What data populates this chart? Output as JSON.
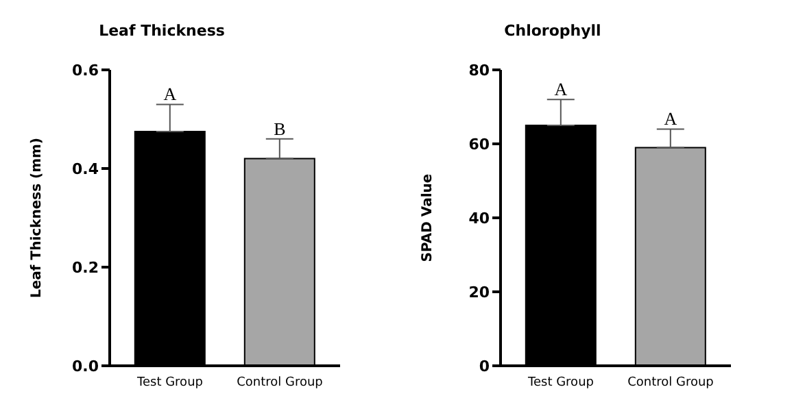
{
  "chart_data": [
    {
      "type": "bar",
      "title": "Leaf Thickness",
      "ylabel": "Leaf Thickness (mm)",
      "categories": [
        "Test Group",
        "Control Group"
      ],
      "values": [
        0.475,
        0.42
      ],
      "errors": [
        0.055,
        0.04
      ],
      "colors": [
        "#000000",
        "#a6a6a6"
      ],
      "ylim": [
        0,
        0.6
      ],
      "yticks": [
        {
          "value": 0,
          "label": "0.0"
        },
        {
          "value": 0.2,
          "label": "0.2"
        },
        {
          "value": 0.4,
          "label": "0.4"
        },
        {
          "value": 0.6,
          "label": "0.6"
        }
      ],
      "grid": false,
      "legend": false,
      "annotations": [
        "A",
        "B"
      ]
    },
    {
      "type": "bar",
      "title": "Chlorophyll",
      "ylabel": "SPAD Value",
      "categories": [
        "Test Group",
        "Control Group"
      ],
      "values": [
        65,
        59
      ],
      "errors": [
        7,
        5
      ],
      "colors": [
        "#000000",
        "#a6a6a6"
      ],
      "ylim": [
        0,
        80
      ],
      "yticks": [
        0,
        20,
        40,
        60,
        80
      ],
      "grid": false,
      "legend": false,
      "annotations": [
        "A",
        "A"
      ]
    }
  ]
}
